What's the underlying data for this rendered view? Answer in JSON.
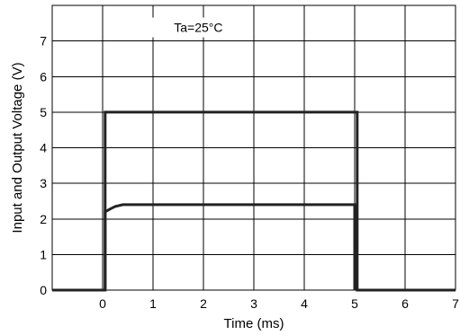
{
  "chart_data": {
    "type": "line",
    "title": "",
    "xlabel": "Time (ms)",
    "ylabel": "Input and Output Voltage (V)",
    "annotation": "Ta=25°C",
    "xlim": [
      -1,
      7
    ],
    "ylim": [
      0,
      8
    ],
    "x_ticks": [
      0,
      1,
      2,
      3,
      4,
      5,
      6,
      7
    ],
    "y_ticks": [
      0,
      1,
      2,
      3,
      4,
      5,
      6,
      7
    ],
    "grid": true,
    "legend": "none",
    "series": [
      {
        "color": "#222222",
        "points": [
          [
            -1,
            0
          ],
          [
            0.05,
            0
          ],
          [
            0.05,
            5
          ],
          [
            5.05,
            5
          ],
          [
            5.05,
            0
          ],
          [
            7,
            0
          ]
        ]
      },
      {
        "color": "#222222",
        "points": [
          [
            0.05,
            0
          ],
          [
            0.05,
            2.2
          ],
          [
            0.15,
            2.28
          ],
          [
            0.25,
            2.35
          ],
          [
            0.4,
            2.4
          ],
          [
            5.0,
            2.4
          ],
          [
            5.0,
            0
          ]
        ]
      }
    ]
  }
}
